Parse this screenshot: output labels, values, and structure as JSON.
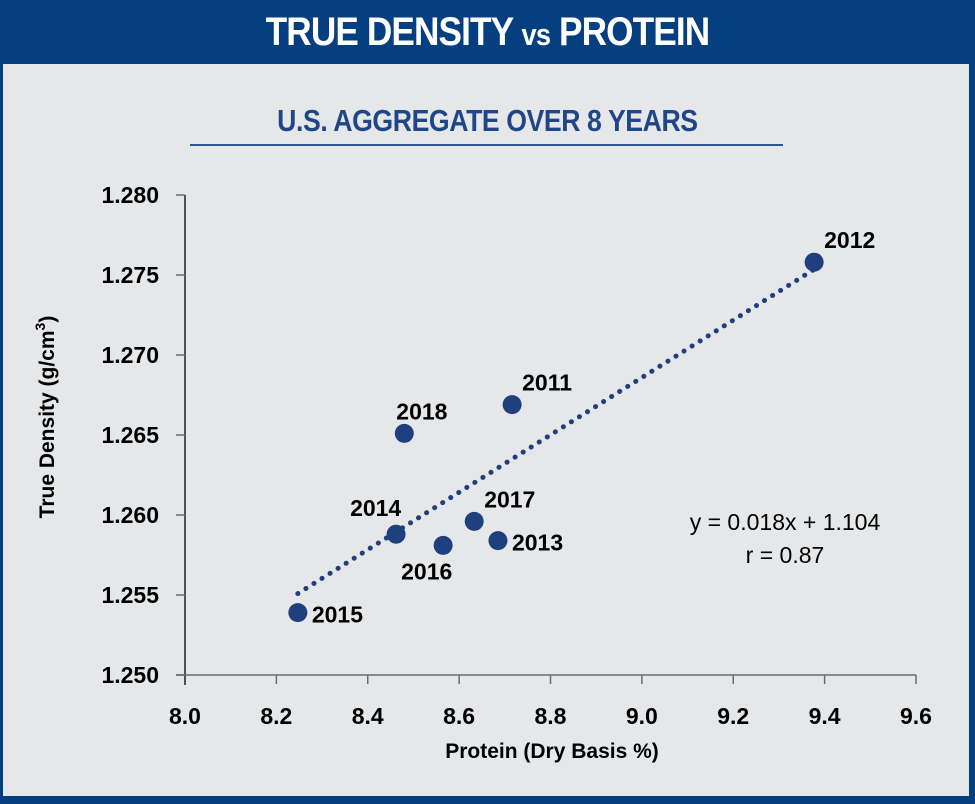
{
  "header": {
    "title_main_1": "TRUE DENSITY ",
    "title_small": "vs",
    "title_main_2": " PROTEIN"
  },
  "subtitle": "U.S. AGGREGATE OVER 8 YEARS",
  "colors": {
    "brand_blue": "#053F7F",
    "marker": "#1F3F7F",
    "trendline": "#1F3F7F",
    "panel_bg": "#E6E7E9",
    "subtitle": "#1F4788"
  },
  "chart_data": {
    "type": "scatter",
    "title": "TRUE DENSITY vs PROTEIN",
    "subtitle": "U.S. AGGREGATE OVER 8 YEARS",
    "xlabel": "Protein (Dry Basis %)",
    "ylabel_main": "True Density (g/cm",
    "ylabel_sup": "3",
    "ylabel_end": ")",
    "xlim": [
      8.0,
      9.6
    ],
    "ylim": [
      1.25,
      1.28
    ],
    "x_ticks": [
      "8.0",
      "8.2",
      "8.4",
      "8.6",
      "8.8",
      "9.0",
      "9.2",
      "9.4",
      "9.6"
    ],
    "y_ticks": [
      "1.250",
      "1.255",
      "1.260",
      "1.265",
      "1.270",
      "1.275",
      "1.280"
    ],
    "grid": false,
    "points": [
      {
        "label": "2011",
        "x": 8.716,
        "y": 1.2669,
        "label_pos": "above-right"
      },
      {
        "label": "2012",
        "x": 9.377,
        "y": 1.2758,
        "label_pos": "above-right"
      },
      {
        "label": "2013",
        "x": 8.685,
        "y": 1.2584,
        "label_pos": "right"
      },
      {
        "label": "2014",
        "x": 8.462,
        "y": 1.2588,
        "label_pos": "above-left"
      },
      {
        "label": "2015",
        "x": 8.247,
        "y": 1.2539,
        "label_pos": "right"
      },
      {
        "label": "2016",
        "x": 8.565,
        "y": 1.2581,
        "label_pos": "below"
      },
      {
        "label": "2017",
        "x": 8.633,
        "y": 1.2596,
        "label_pos": "above-right"
      },
      {
        "label": "2018",
        "x": 8.48,
        "y": 1.2651,
        "label_pos": "above"
      }
    ],
    "trendline": {
      "type": "linear",
      "style": "dotted",
      "slope": 0.018,
      "intercept": 1.104
    },
    "annotations": [
      "y = 0.018x + 1.104",
      "r = 0.87"
    ]
  }
}
